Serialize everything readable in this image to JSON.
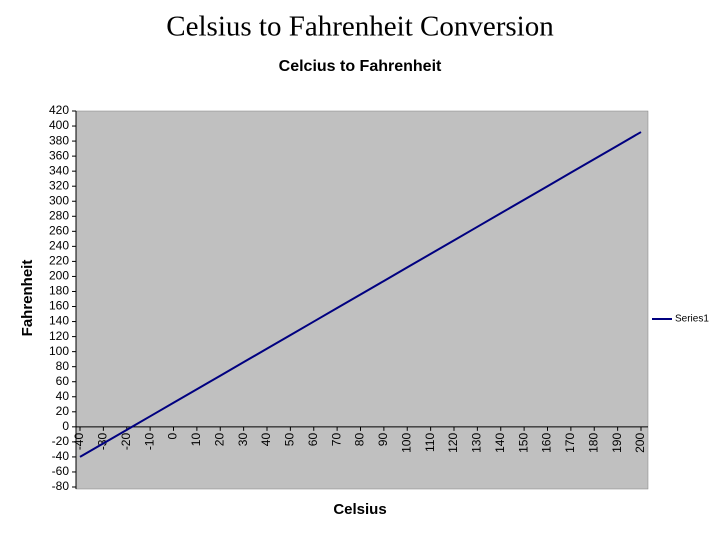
{
  "slide_title": "Celsius to Fahrenheit Conversion",
  "chart_data": {
    "type": "line",
    "title": "Celcius to Fahrenheit",
    "x_label": "Celsius",
    "y_label": "Fahrenheit",
    "categories": [
      -40,
      -30,
      -20,
      -10,
      0,
      10,
      20,
      30,
      40,
      50,
      60,
      70,
      80,
      90,
      100,
      110,
      120,
      130,
      140,
      150,
      160,
      170,
      180,
      190,
      200
    ],
    "series": [
      {
        "name": "Series1",
        "color": "#000080",
        "values": [
          -40,
          -22,
          -4,
          14,
          32,
          50,
          68,
          86,
          104,
          122,
          140,
          158,
          176,
          194,
          212,
          230,
          248,
          266,
          284,
          302,
          320,
          338,
          356,
          374,
          392
        ]
      }
    ],
    "ylim": [
      -80,
      420
    ],
    "yticks": [
      -80,
      -60,
      -40,
      -20,
      0,
      20,
      40,
      60,
      80,
      100,
      120,
      140,
      160,
      180,
      200,
      220,
      240,
      260,
      280,
      300,
      320,
      340,
      360,
      380,
      400,
      420
    ],
    "grid": false,
    "legend": "right",
    "plot_color": "#c0c0c0"
  }
}
